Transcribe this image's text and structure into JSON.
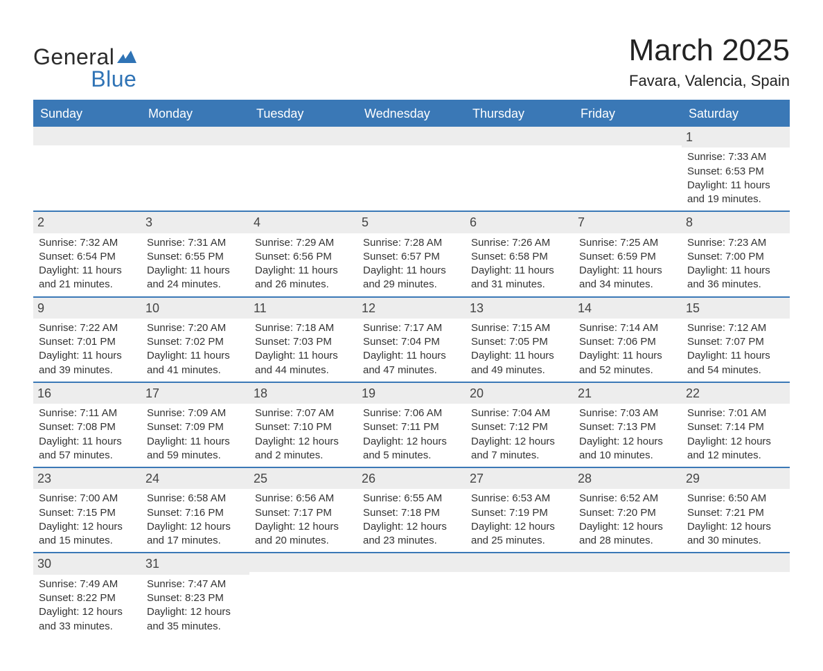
{
  "brand": {
    "line1": "General",
    "line2": "Blue"
  },
  "title": "March 2025",
  "subtitle": "Favara, Valencia, Spain",
  "colors": {
    "header_bg": "#3a78b6",
    "header_text": "#ffffff",
    "row_divider": "#3a78b6",
    "daynum_bg": "#ededed",
    "body_text": "#333333",
    "page_bg": "#ffffff",
    "logo_blue": "#2f73b5",
    "logo_dark": "#2b2b2b"
  },
  "typography": {
    "title_fontsize": 44,
    "subtitle_fontsize": 22,
    "dayheader_fontsize": 18,
    "daynum_fontsize": 18,
    "body_fontsize": 15,
    "font_family": "Arial, Helvetica, sans-serif"
  },
  "day_names": [
    "Sunday",
    "Monday",
    "Tuesday",
    "Wednesday",
    "Thursday",
    "Friday",
    "Saturday"
  ],
  "weeks": [
    [
      null,
      null,
      null,
      null,
      null,
      null,
      {
        "n": "1",
        "sunrise": "Sunrise: 7:33 AM",
        "sunset": "Sunset: 6:53 PM",
        "dl1": "Daylight: 11 hours",
        "dl2": "and 19 minutes."
      }
    ],
    [
      {
        "n": "2",
        "sunrise": "Sunrise: 7:32 AM",
        "sunset": "Sunset: 6:54 PM",
        "dl1": "Daylight: 11 hours",
        "dl2": "and 21 minutes."
      },
      {
        "n": "3",
        "sunrise": "Sunrise: 7:31 AM",
        "sunset": "Sunset: 6:55 PM",
        "dl1": "Daylight: 11 hours",
        "dl2": "and 24 minutes."
      },
      {
        "n": "4",
        "sunrise": "Sunrise: 7:29 AM",
        "sunset": "Sunset: 6:56 PM",
        "dl1": "Daylight: 11 hours",
        "dl2": "and 26 minutes."
      },
      {
        "n": "5",
        "sunrise": "Sunrise: 7:28 AM",
        "sunset": "Sunset: 6:57 PM",
        "dl1": "Daylight: 11 hours",
        "dl2": "and 29 minutes."
      },
      {
        "n": "6",
        "sunrise": "Sunrise: 7:26 AM",
        "sunset": "Sunset: 6:58 PM",
        "dl1": "Daylight: 11 hours",
        "dl2": "and 31 minutes."
      },
      {
        "n": "7",
        "sunrise": "Sunrise: 7:25 AM",
        "sunset": "Sunset: 6:59 PM",
        "dl1": "Daylight: 11 hours",
        "dl2": "and 34 minutes."
      },
      {
        "n": "8",
        "sunrise": "Sunrise: 7:23 AM",
        "sunset": "Sunset: 7:00 PM",
        "dl1": "Daylight: 11 hours",
        "dl2": "and 36 minutes."
      }
    ],
    [
      {
        "n": "9",
        "sunrise": "Sunrise: 7:22 AM",
        "sunset": "Sunset: 7:01 PM",
        "dl1": "Daylight: 11 hours",
        "dl2": "and 39 minutes."
      },
      {
        "n": "10",
        "sunrise": "Sunrise: 7:20 AM",
        "sunset": "Sunset: 7:02 PM",
        "dl1": "Daylight: 11 hours",
        "dl2": "and 41 minutes."
      },
      {
        "n": "11",
        "sunrise": "Sunrise: 7:18 AM",
        "sunset": "Sunset: 7:03 PM",
        "dl1": "Daylight: 11 hours",
        "dl2": "and 44 minutes."
      },
      {
        "n": "12",
        "sunrise": "Sunrise: 7:17 AM",
        "sunset": "Sunset: 7:04 PM",
        "dl1": "Daylight: 11 hours",
        "dl2": "and 47 minutes."
      },
      {
        "n": "13",
        "sunrise": "Sunrise: 7:15 AM",
        "sunset": "Sunset: 7:05 PM",
        "dl1": "Daylight: 11 hours",
        "dl2": "and 49 minutes."
      },
      {
        "n": "14",
        "sunrise": "Sunrise: 7:14 AM",
        "sunset": "Sunset: 7:06 PM",
        "dl1": "Daylight: 11 hours",
        "dl2": "and 52 minutes."
      },
      {
        "n": "15",
        "sunrise": "Sunrise: 7:12 AM",
        "sunset": "Sunset: 7:07 PM",
        "dl1": "Daylight: 11 hours",
        "dl2": "and 54 minutes."
      }
    ],
    [
      {
        "n": "16",
        "sunrise": "Sunrise: 7:11 AM",
        "sunset": "Sunset: 7:08 PM",
        "dl1": "Daylight: 11 hours",
        "dl2": "and 57 minutes."
      },
      {
        "n": "17",
        "sunrise": "Sunrise: 7:09 AM",
        "sunset": "Sunset: 7:09 PM",
        "dl1": "Daylight: 11 hours",
        "dl2": "and 59 minutes."
      },
      {
        "n": "18",
        "sunrise": "Sunrise: 7:07 AM",
        "sunset": "Sunset: 7:10 PM",
        "dl1": "Daylight: 12 hours",
        "dl2": "and 2 minutes."
      },
      {
        "n": "19",
        "sunrise": "Sunrise: 7:06 AM",
        "sunset": "Sunset: 7:11 PM",
        "dl1": "Daylight: 12 hours",
        "dl2": "and 5 minutes."
      },
      {
        "n": "20",
        "sunrise": "Sunrise: 7:04 AM",
        "sunset": "Sunset: 7:12 PM",
        "dl1": "Daylight: 12 hours",
        "dl2": "and 7 minutes."
      },
      {
        "n": "21",
        "sunrise": "Sunrise: 7:03 AM",
        "sunset": "Sunset: 7:13 PM",
        "dl1": "Daylight: 12 hours",
        "dl2": "and 10 minutes."
      },
      {
        "n": "22",
        "sunrise": "Sunrise: 7:01 AM",
        "sunset": "Sunset: 7:14 PM",
        "dl1": "Daylight: 12 hours",
        "dl2": "and 12 minutes."
      }
    ],
    [
      {
        "n": "23",
        "sunrise": "Sunrise: 7:00 AM",
        "sunset": "Sunset: 7:15 PM",
        "dl1": "Daylight: 12 hours",
        "dl2": "and 15 minutes."
      },
      {
        "n": "24",
        "sunrise": "Sunrise: 6:58 AM",
        "sunset": "Sunset: 7:16 PM",
        "dl1": "Daylight: 12 hours",
        "dl2": "and 17 minutes."
      },
      {
        "n": "25",
        "sunrise": "Sunrise: 6:56 AM",
        "sunset": "Sunset: 7:17 PM",
        "dl1": "Daylight: 12 hours",
        "dl2": "and 20 minutes."
      },
      {
        "n": "26",
        "sunrise": "Sunrise: 6:55 AM",
        "sunset": "Sunset: 7:18 PM",
        "dl1": "Daylight: 12 hours",
        "dl2": "and 23 minutes."
      },
      {
        "n": "27",
        "sunrise": "Sunrise: 6:53 AM",
        "sunset": "Sunset: 7:19 PM",
        "dl1": "Daylight: 12 hours",
        "dl2": "and 25 minutes."
      },
      {
        "n": "28",
        "sunrise": "Sunrise: 6:52 AM",
        "sunset": "Sunset: 7:20 PM",
        "dl1": "Daylight: 12 hours",
        "dl2": "and 28 minutes."
      },
      {
        "n": "29",
        "sunrise": "Sunrise: 6:50 AM",
        "sunset": "Sunset: 7:21 PM",
        "dl1": "Daylight: 12 hours",
        "dl2": "and 30 minutes."
      }
    ],
    [
      {
        "n": "30",
        "sunrise": "Sunrise: 7:49 AM",
        "sunset": "Sunset: 8:22 PM",
        "dl1": "Daylight: 12 hours",
        "dl2": "and 33 minutes."
      },
      {
        "n": "31",
        "sunrise": "Sunrise: 7:47 AM",
        "sunset": "Sunset: 8:23 PM",
        "dl1": "Daylight: 12 hours",
        "dl2": "and 35 minutes."
      },
      null,
      null,
      null,
      null,
      null
    ]
  ]
}
